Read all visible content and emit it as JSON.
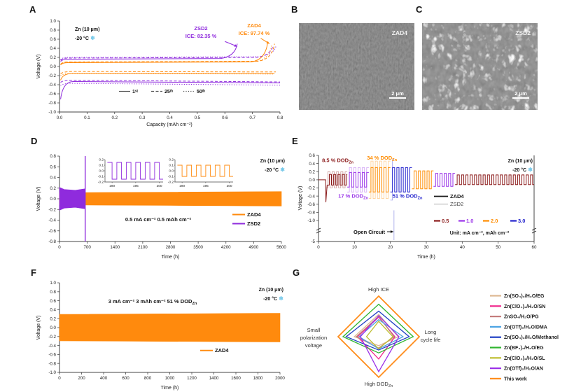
{
  "panel_labels": {
    "a": "A",
    "b": "B",
    "c": "C",
    "d": "D",
    "e": "E",
    "f": "F",
    "g": "G"
  },
  "sample": "Zn (10 μm)",
  "temp": "-20 °C",
  "snowflake": "❄",
  "colors": {
    "zad4": "#FF8A0D",
    "zsd2": "#8F2BDD",
    "axis": "#444444",
    "snowflake": "#6EC6E8"
  },
  "sem": {
    "b": {
      "tag": "ZAD4",
      "scale": "2 μm"
    },
    "c": {
      "tag": "ZSD2",
      "scale": "2 μm"
    }
  },
  "chart_data": [
    {
      "id": "A",
      "type": "line",
      "xlabel": "Capacity (mAh cm⁻²)",
      "ylabel": "Voltage (V)",
      "xlim": [
        0,
        0.8
      ],
      "ylim": [
        -1,
        1
      ],
      "xtick_step": 0.1,
      "ytick_step": 0.2,
      "cycle_legend": [
        {
          "label": "1ˢᵗ",
          "style": "solid"
        },
        {
          "label": "25ᵗʰ",
          "style": "dashed"
        },
        {
          "label": "50ᵗʰ",
          "style": "dotted"
        }
      ],
      "callouts": [
        {
          "lines": [
            "ZSD2",
            "ICE: 82.35 %"
          ],
          "color": "#8F2BDD",
          "x": 0.513,
          "y": 0.8,
          "af": [
            0.6,
            0.55
          ],
          "at": [
            0.645,
            0.44
          ]
        },
        {
          "lines": [
            "ZAD4",
            "ICE: 97.74 %"
          ],
          "color": "#FF8A0D",
          "x": 0.706,
          "y": 0.86,
          "af": [
            0.73,
            0.62
          ],
          "at": [
            0.762,
            0.5
          ]
        }
      ],
      "series": [
        {
          "name": "ZSD2-1st",
          "color": "#8F2BDD",
          "style": "solid",
          "charge": {
            "plateau": 0.16,
            "end": 0.645,
            "v_end": 0.5
          },
          "discharge": {
            "dip": -0.72,
            "plateau": -0.33,
            "end": 0.8,
            "v_end": -0.36
          }
        },
        {
          "name": "ZSD2-25th",
          "color": "#8F2BDD",
          "style": "dashed",
          "charge": {
            "plateau": 0.185,
            "end": 0.775,
            "v_end": 0.46
          },
          "discharge": {
            "dip": -0.35,
            "plateau": -0.3,
            "end": 0.8,
            "v_end": -0.34
          }
        },
        {
          "name": "ZSD2-50th",
          "color": "#8F2BDD",
          "style": "dotted",
          "charge": {
            "plateau": 0.2,
            "end": 0.785,
            "v_end": 0.44
          },
          "discharge": {
            "dip": -0.42,
            "plateau": -0.37,
            "end": 0.8,
            "v_end": -0.41
          }
        },
        {
          "name": "ZAD4-1st",
          "color": "#FF8A0D",
          "style": "solid",
          "charge": {
            "plateau": 0.085,
            "end": 0.755,
            "v_end": 0.52
          },
          "discharge": {
            "dip": -0.3,
            "plateau": -0.15,
            "end": 0.78,
            "v_end": -0.155
          }
        },
        {
          "name": "ZAD4-25th",
          "color": "#FF8A0D",
          "style": "dashed",
          "charge": {
            "plateau": 0.1,
            "end": 0.78,
            "v_end": 0.5
          },
          "discharge": {
            "dip": -0.16,
            "plateau": -0.11,
            "end": 0.785,
            "v_end": -0.12
          }
        },
        {
          "name": "ZAD4-50th",
          "color": "#FF8A0D",
          "style": "dotted",
          "charge": {
            "plateau": 0.095,
            "end": 0.77,
            "v_end": 0.47
          },
          "discharge": {
            "dip": -0.2,
            "plateau": -0.155,
            "end": 0.78,
            "v_end": -0.165
          }
        }
      ]
    },
    {
      "id": "D",
      "type": "band",
      "xlabel": "Time (h)",
      "ylabel": "Voltage (V)",
      "xlim": [
        0,
        5600
      ],
      "ylim": [
        -0.8,
        0.8
      ],
      "xtick_step": 700,
      "ytick_step": 0.2,
      "condition": "0.5 mA cm⁻² 0.5 mAh cm⁻²",
      "legend": [
        {
          "label": "ZAD4",
          "color": "#FF8A0D"
        },
        {
          "label": "ZSD2",
          "color": "#8F2BDD"
        }
      ],
      "bands": [
        {
          "name": "ZAD4",
          "color": "#FF8A0D",
          "points": [
            [
              0,
              0.115
            ],
            [
              2800,
              0.125
            ],
            [
              5600,
              0.135
            ]
          ]
        },
        {
          "name": "ZSD2",
          "color": "#8F2BDD",
          "points": [
            [
              0,
              0.215
            ],
            [
              120,
              0.175
            ],
            [
              400,
              0.16
            ],
            [
              630,
              0.185
            ]
          ],
          "fail_t": 648
        }
      ],
      "insets": [
        {
          "color": "#8F2BDD",
          "xlim": [
            188.5,
            200.8
          ],
          "xticks": [
            190,
            195,
            200
          ],
          "yticks": [
            0.2,
            0.1,
            0.0,
            -0.1,
            -0.2
          ],
          "amp": 0.15,
          "period": 2
        },
        {
          "color": "#FF8A0D",
          "xlim": [
            188.5,
            200.8
          ],
          "xticks": [
            190,
            195,
            200
          ],
          "yticks": [
            0.2,
            0.1,
            0.0,
            -0.1,
            -0.2
          ],
          "amp": 0.1,
          "period": 2
        }
      ]
    },
    {
      "id": "E",
      "type": "rate-cycling",
      "xlabel": "Time (h)",
      "ylabel": "Voltage (V)",
      "xlim": [
        0,
        60
      ],
      "xtick_step": 10,
      "yticks_main": [
        0.6,
        0.4,
        0.2,
        0.0,
        -0.2,
        -0.4,
        -0.6,
        -0.8,
        -1.0
      ],
      "y_break_label": "-5",
      "initial_dip": {
        "t": 2,
        "v": -0.55
      },
      "zsd2_fail_t": 21,
      "open_circuit": "Open Circuit",
      "blocks": [
        {
          "t0": 2,
          "t1": 8,
          "amp": 0.13,
          "rate": "0.5",
          "color": "#8B1A1A",
          "zsd2_amp": 0.2
        },
        {
          "t0": 8,
          "t1": 14,
          "amp": 0.18,
          "rate": "1.0",
          "color": "#9932E8",
          "zsd2_amp": 0.3
        },
        {
          "t0": 14,
          "t1": 20,
          "amp": 0.3,
          "rate": "2.0",
          "color": "#FF8C00",
          "zsd2_amp": 0.46
        },
        {
          "t0": 20,
          "t1": 26,
          "amp": 0.3,
          "rate": "3.0",
          "color": "#2121CD",
          "zsd2_amp": 0.5
        },
        {
          "t0": 26,
          "t1": 32,
          "amp": 0.22,
          "rate": "2.0",
          "color": "#FF8C00"
        },
        {
          "t0": 32,
          "t1": 38,
          "amp": 0.16,
          "rate": "1.0",
          "color": "#9932E8"
        },
        {
          "t0": 38,
          "t1": 60,
          "amp": 0.12,
          "rate": "0.5",
          "color": "#8B1A1A"
        }
      ],
      "dod_labels": [
        {
          "text": "8.5 % DOD_Zn",
          "color": "#8B1A1A",
          "t": 1.0,
          "v": 0.44
        },
        {
          "text": "34 % DOD_Zn",
          "color": "#FF8C00",
          "t": 13.5,
          "v": 0.5
        },
        {
          "text": "17 % DOD_Zn",
          "color": "#9932E8",
          "t": 5.5,
          "v": -0.44
        },
        {
          "text": "51 % DOD_Zn",
          "color": "#2121CD",
          "t": 20.6,
          "v": -0.44
        }
      ],
      "legend": [
        {
          "label": "ZAD4",
          "color": "#1a1a1a",
          "width": 1.8
        },
        {
          "label": "ZSD2",
          "color": "#aaaaaa",
          "width": 1
        }
      ],
      "rate_legend": {
        "items": [
          {
            "label": "0.5",
            "color": "#8B1A1A"
          },
          {
            "label": "1.0",
            "color": "#9932E8"
          },
          {
            "label": "2.0",
            "color": "#FF8C00"
          },
          {
            "label": "3.0",
            "color": "#2121CD"
          }
        ],
        "unit": "Unit: mA cm⁻², mAh cm⁻²"
      }
    },
    {
      "id": "F",
      "type": "band",
      "xlabel": "Time (h)",
      "ylabel": "Voltage (V)",
      "xlim": [
        0,
        2000
      ],
      "ylim": [
        -1,
        1
      ],
      "xtick_step": 200,
      "ytick_step": 0.2,
      "condition": "3 mA cm⁻² 3 mAh cm⁻²   51 % DOD_Zn",
      "legend": [
        {
          "label": "ZAD4",
          "color": "#FF8A0D"
        }
      ],
      "bands": [
        {
          "name": "ZAD4",
          "color": "#FF8A0D",
          "points": [
            [
              0,
              0.295
            ],
            [
              2000,
              0.32
            ]
          ]
        }
      ]
    },
    {
      "id": "G",
      "type": "radar",
      "axes": [
        "High ICE",
        "Long cycle life",
        "High DOD_Zn",
        "Small polarization voltage"
      ],
      "axis_labels": {
        "top": "High ICE",
        "right": [
          "Long",
          "cycle life"
        ],
        "bottom": "High DOD_Zn",
        "left": [
          "Small",
          "polarization",
          "voltage"
        ]
      },
      "series": [
        {
          "name": "Zn(SO₄)₂/H₂O/EG",
          "color": "#DDB892",
          "values": [
            0.55,
            0.48,
            0.22,
            0.6
          ]
        },
        {
          "name": "Zn(ClO₄)₂/H₂O/SN",
          "color": "#F0288C",
          "values": [
            0.48,
            0.4,
            0.55,
            0.52
          ]
        },
        {
          "name": "ZnSO₄/H₂O/PG",
          "color": "#C47C7C",
          "values": [
            0.5,
            0.38,
            0.28,
            0.55
          ]
        },
        {
          "name": "Zn(OTf)₂/H₂O/DMA",
          "color": "#4BA3E3",
          "values": [
            0.42,
            0.6,
            0.3,
            0.48
          ]
        },
        {
          "name": "Zn(SO₄)₂/H₂O/Methanol",
          "color": "#1F3FC4",
          "values": [
            0.63,
            0.75,
            0.33,
            0.8
          ]
        },
        {
          "name": "Zn(BF₄)₂/H₂O/EG",
          "color": "#2FB52F",
          "values": [
            0.8,
            0.85,
            0.4,
            0.88
          ]
        },
        {
          "name": "Zn(ClO₄)₂/H₂O/SL",
          "color": "#BFBF33",
          "values": [
            0.38,
            0.35,
            0.3,
            0.3
          ]
        },
        {
          "name": "Zn(OTf)₂/H₂O/AN",
          "color": "#9B2FE8",
          "values": [
            0.52,
            0.5,
            0.86,
            0.45
          ]
        },
        {
          "name": "This work",
          "color": "#FF8C1A",
          "values": [
            1.0,
            1.0,
            1.0,
            1.0
          ]
        }
      ]
    }
  ]
}
